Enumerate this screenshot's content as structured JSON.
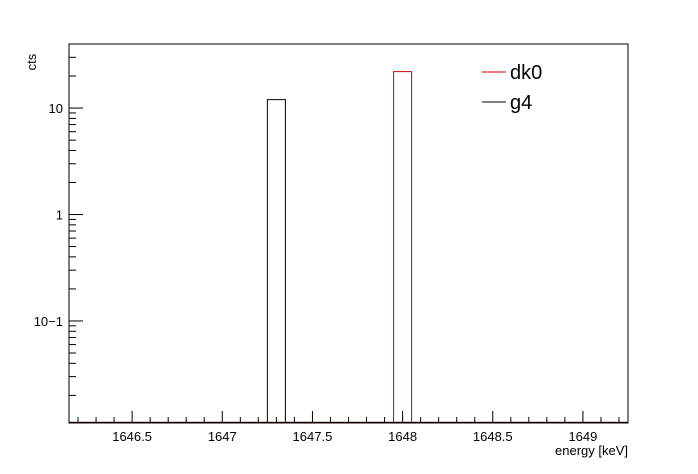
{
  "chart_data": {
    "type": "bar",
    "subtype": "histogram",
    "xlabel": "energy [keV]",
    "ylabel": "cts",
    "xlim": [
      1646.15,
      1649.25
    ],
    "ylim": [
      0.011,
      40
    ],
    "y_scale": "log",
    "x_ticks": [
      1646.5,
      1647,
      1647.5,
      1648,
      1648.5,
      1649
    ],
    "x_tick_labels": [
      "1646.5",
      "1647",
      "1647.5",
      "1648",
      "1648.5",
      "1649"
    ],
    "y_tick_labels": [
      {
        "value": 10,
        "label": "10"
      },
      {
        "value": 1,
        "label": "1"
      },
      {
        "value": 0.1,
        "label": "10−1"
      }
    ],
    "grid": false,
    "legend_position": "top-right",
    "series": [
      {
        "name": "dk0",
        "color": "#cc0000",
        "bins": [
          {
            "x0": 1647.95,
            "x1": 1648.05,
            "value": 22
          }
        ]
      },
      {
        "name": "g4",
        "color": "#000000",
        "bins": [
          {
            "x0": 1647.25,
            "x1": 1647.35,
            "value": 12
          }
        ]
      }
    ]
  }
}
